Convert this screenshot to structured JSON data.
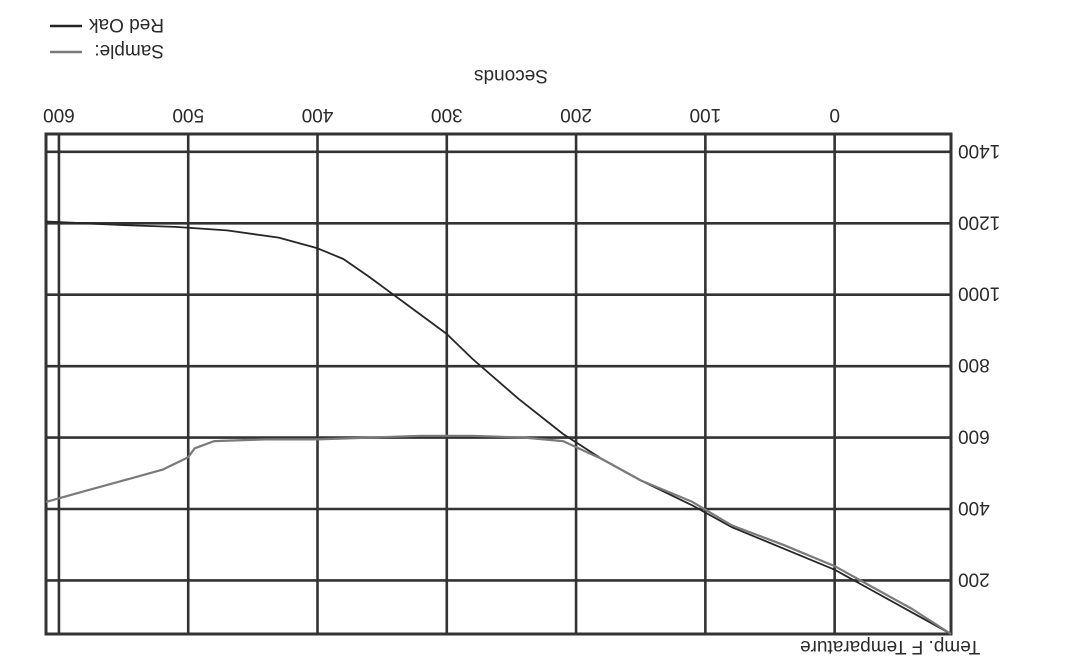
{
  "chart_data": {
    "type": "line",
    "ylabel": "Temp. F   Temparature",
    "xlabel": "Seconds",
    "x_ticks": [
      0,
      100,
      200,
      300,
      400,
      500,
      600
    ],
    "y_ticks": [
      200,
      400,
      600,
      800,
      1000,
      1200,
      1400
    ],
    "xlim": [
      -90,
      610
    ],
    "ylim": [
      50,
      1450
    ],
    "grid": true,
    "legend_position": "bottom-left",
    "series": [
      {
        "name": "Red Oak",
        "color": "#262626",
        "points": [
          [
            -90,
            50
          ],
          [
            -60,
            110
          ],
          [
            -30,
            170
          ],
          [
            0,
            230
          ],
          [
            40,
            290
          ],
          [
            80,
            350
          ],
          [
            110,
            410
          ],
          [
            150,
            480
          ],
          [
            180,
            540
          ],
          [
            210,
            610
          ],
          [
            245,
            710
          ],
          [
            280,
            820
          ],
          [
            300,
            890
          ],
          [
            330,
            970
          ],
          [
            360,
            1050
          ],
          [
            380,
            1100
          ],
          [
            400,
            1130
          ],
          [
            430,
            1160
          ],
          [
            470,
            1180
          ],
          [
            510,
            1190
          ],
          [
            550,
            1195
          ],
          [
            580,
            1200
          ],
          [
            610,
            1205
          ]
        ]
      },
      {
        "name": "Sample:",
        "color": "#7a7a7a",
        "points": [
          [
            -90,
            50
          ],
          [
            -60,
            120
          ],
          [
            -30,
            180
          ],
          [
            0,
            240
          ],
          [
            40,
            300
          ],
          [
            80,
            355
          ],
          [
            110,
            420
          ],
          [
            150,
            480
          ],
          [
            180,
            540
          ],
          [
            195,
            565
          ],
          [
            210,
            590
          ],
          [
            240,
            600
          ],
          [
            280,
            605
          ],
          [
            320,
            605
          ],
          [
            360,
            600
          ],
          [
            400,
            595
          ],
          [
            440,
            595
          ],
          [
            480,
            590
          ],
          [
            495,
            570
          ],
          [
            500,
            545
          ],
          [
            520,
            510
          ],
          [
            550,
            480
          ],
          [
            580,
            450
          ],
          [
            600,
            430
          ],
          [
            610,
            420
          ]
        ]
      }
    ]
  }
}
